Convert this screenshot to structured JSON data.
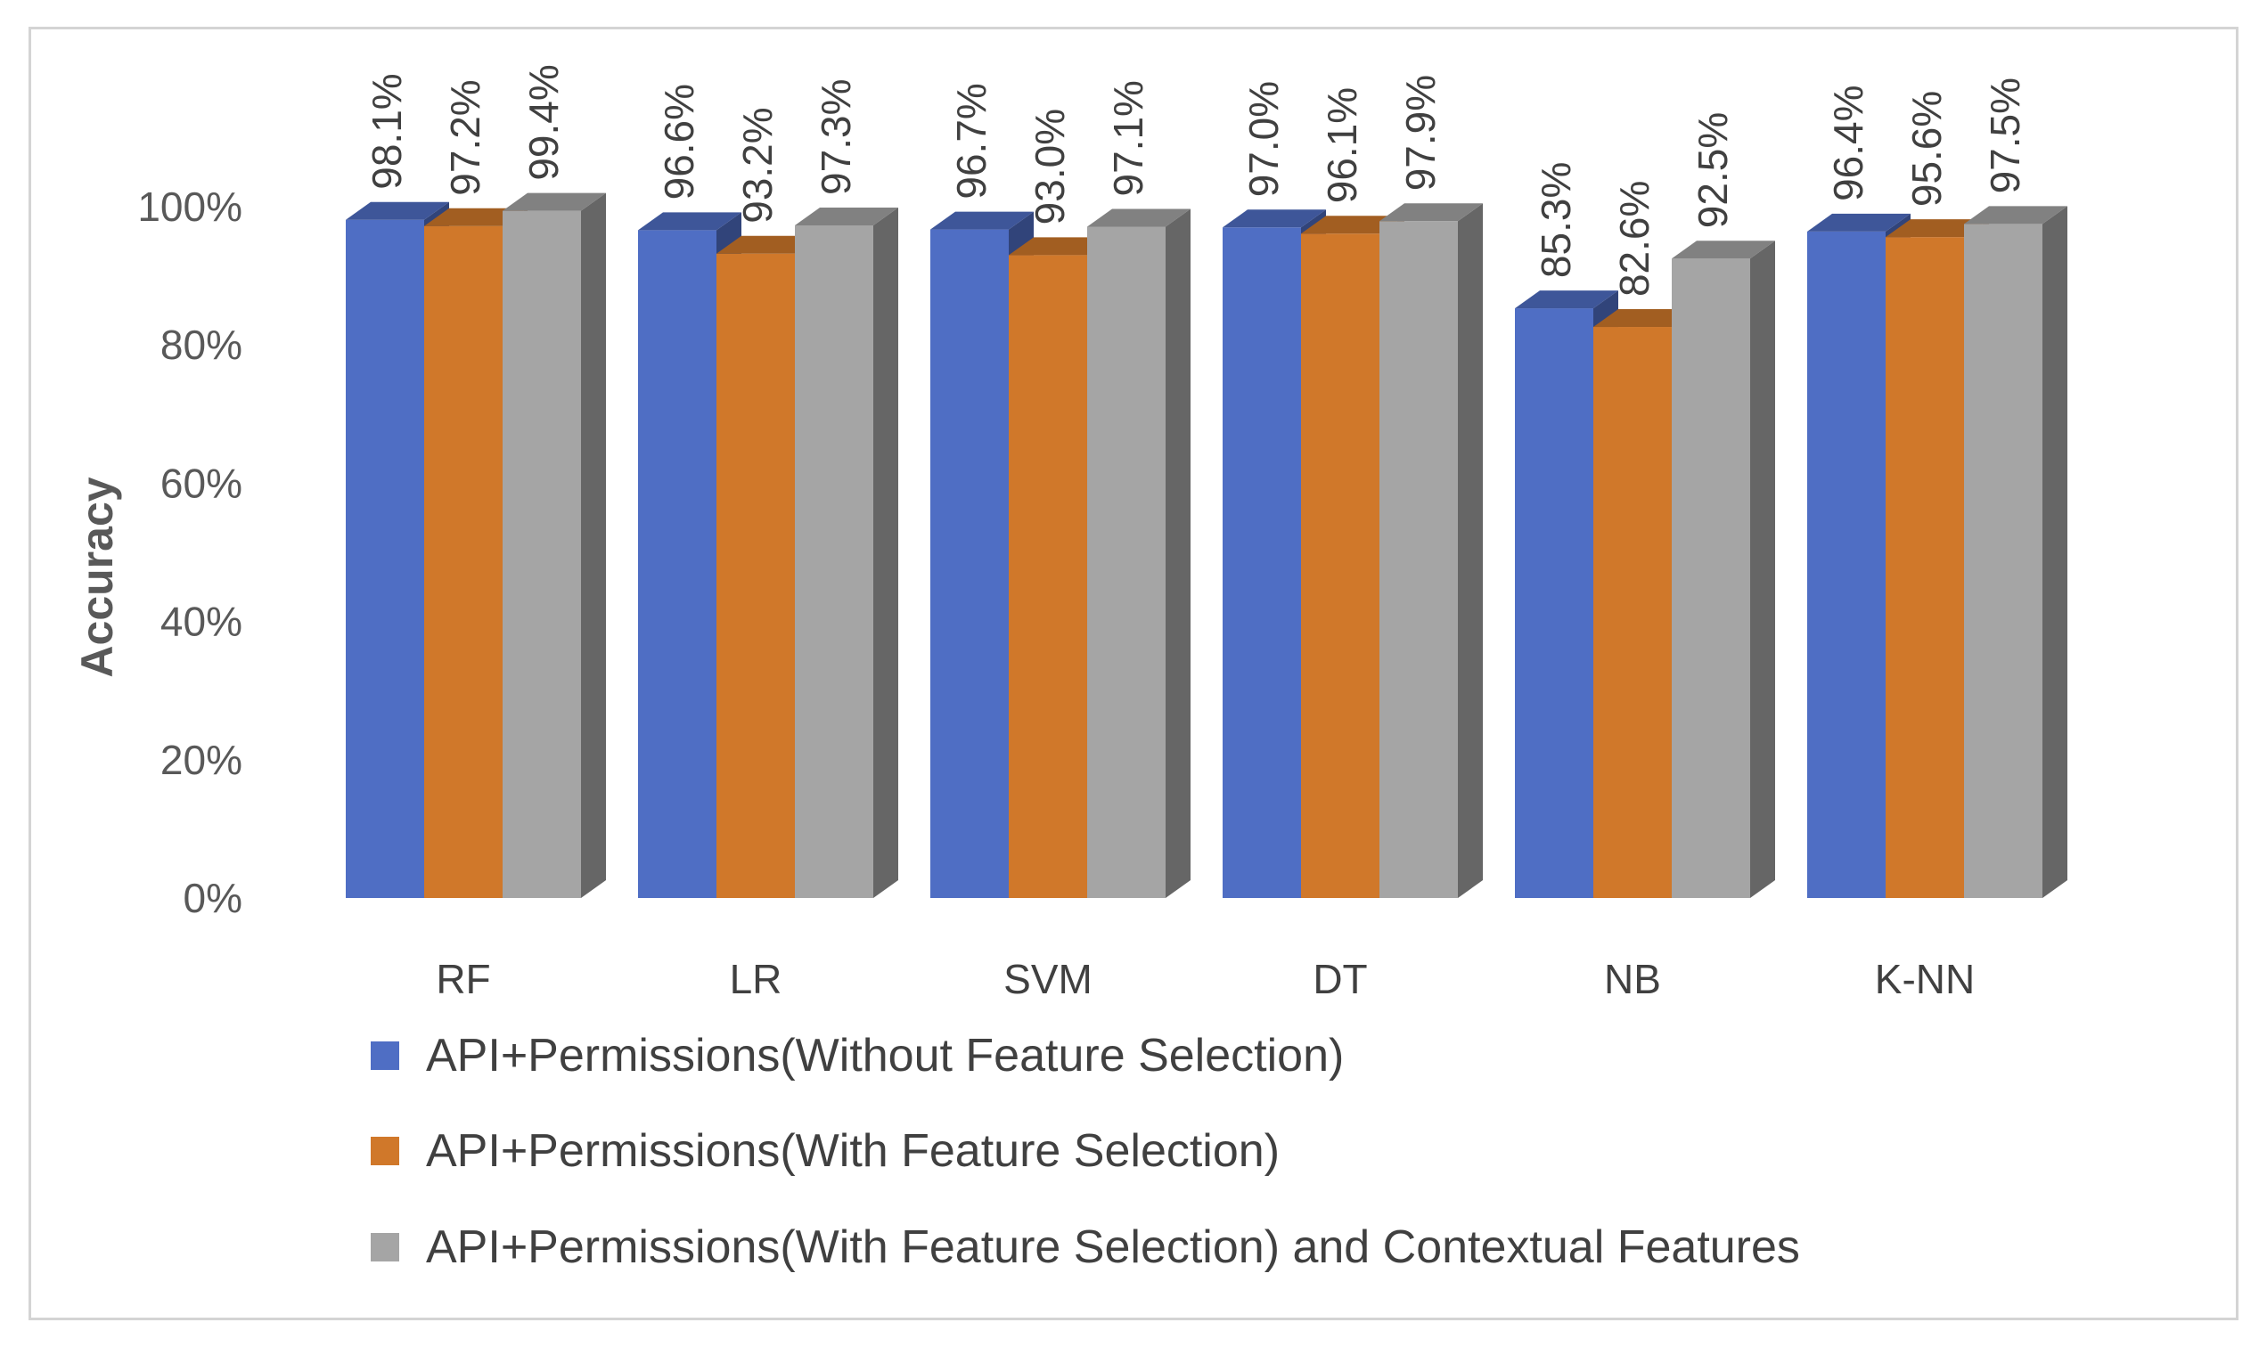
{
  "chart_data": {
    "type": "bar",
    "title": "",
    "xlabel": "",
    "ylabel": "Accuracy",
    "ylim": [
      0,
      1
    ],
    "yticks": [
      "0%",
      "20%",
      "40%",
      "60%",
      "80%",
      "100%"
    ],
    "categories": [
      "RF",
      "LR",
      "SVM",
      "DT",
      "NB",
      "K-NN"
    ],
    "series": [
      {
        "name": "API+Permissions(Without Feature Selection)",
        "color": "#4f6ec4",
        "values": [
          0.981,
          0.966,
          0.967,
          0.97,
          0.853,
          0.964
        ],
        "labels": [
          "98.1%",
          "96.6%",
          "96.7%",
          "97.0%",
          "85.3%",
          "96.4%"
        ]
      },
      {
        "name": "API+Permissions(With Feature Selection)",
        "color": "#d0782a",
        "values": [
          0.972,
          0.932,
          0.93,
          0.961,
          0.826,
          0.956
        ],
        "labels": [
          "97.2%",
          "93.2%",
          "93.0%",
          "96.1%",
          "82.6%",
          "95.6%"
        ]
      },
      {
        "name": "API+Permissions(With Feature Selection) and Contextual Features",
        "color": "#a5a5a5",
        "values": [
          0.994,
          0.973,
          0.971,
          0.979,
          0.925,
          0.975
        ],
        "labels": [
          "99.4%",
          "97.3%",
          "97.1%",
          "97.9%",
          "92.5%",
          "97.5%"
        ]
      }
    ],
    "grid": false,
    "legend_position": "bottom-left",
    "style": "3d-column"
  }
}
